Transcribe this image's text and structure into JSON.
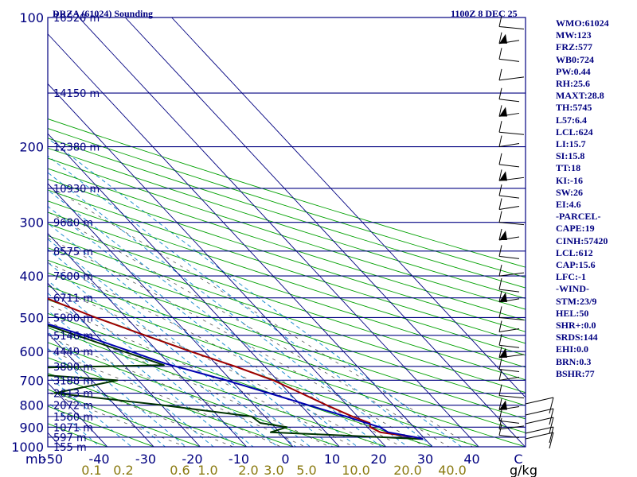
{
  "chart_data": {
    "type": "skew-t log-p sounding",
    "title": "DRZA (61024) Sounding",
    "time_label": "1100Z  8 DEC 25",
    "ylabel": "mb",
    "xlabel_mixing_ratio": "g/kg",
    "pressure_ticks": [
      100,
      200,
      300,
      400,
      500,
      600,
      700,
      800,
      900,
      1000
    ],
    "pressure_range": [
      100,
      1000
    ],
    "temperature_ticks": [
      "-50",
      "-40",
      "-30",
      "-20",
      "-10",
      "0",
      "10",
      "20",
      "30",
      "40",
      "C"
    ],
    "temperature_values": [
      -50,
      -40,
      -30,
      -20,
      -10,
      0,
      10,
      20,
      30,
      40
    ],
    "mixing_ratio_labels": [
      "0.1",
      "0.2",
      "0.6",
      "1.0",
      "2.0",
      "3.0",
      "5.0",
      "10.0",
      "20.0",
      "40.0"
    ],
    "height_levels": [
      {
        "p": 100,
        "label": "16520 m"
      },
      {
        "p": 150,
        "label": "14150 m"
      },
      {
        "p": 200,
        "label": "12380 m"
      },
      {
        "p": 250,
        "label": "10930 m"
      },
      {
        "p": 300,
        "label": "9680 m"
      },
      {
        "p": 350,
        "label": "8575 m"
      },
      {
        "p": 400,
        "label": "7600 m"
      },
      {
        "p": 450,
        "label": "6711 m"
      },
      {
        "p": 500,
        "label": "5900 m"
      },
      {
        "p": 550,
        "label": "5146 m"
      },
      {
        "p": 600,
        "label": "4449 m"
      },
      {
        "p": 650,
        "label": "3800 m"
      },
      {
        "p": 700,
        "label": "3188 m"
      },
      {
        "p": 750,
        "label": "2613 m"
      },
      {
        "p": 800,
        "label": "2072 m"
      },
      {
        "p": 850,
        "label": "1560 m"
      },
      {
        "p": 900,
        "label": "1071 m"
      },
      {
        "p": 950,
        "label": "597 m"
      },
      {
        "p": 1000,
        "label": "155 m"
      }
    ],
    "series": [
      {
        "name": "Temperature",
        "color": "#a00000",
        "points": [
          [
            100,
            -75.8
          ],
          [
            105,
            -79.5
          ],
          [
            120,
            -83.3
          ],
          [
            150,
            -81.1
          ],
          [
            200,
            -74.9
          ],
          [
            250,
            -65.8
          ],
          [
            300,
            -56.3
          ],
          [
            350,
            -43.2
          ],
          [
            400,
            -32.6
          ],
          [
            450,
            -23.4
          ],
          [
            500,
            -16.6
          ],
          [
            550,
            -9.5
          ],
          [
            600,
            -2.9
          ],
          [
            650,
            3.7
          ],
          [
            700,
            9.1
          ],
          [
            750,
            12.5
          ],
          [
            800,
            15.6
          ],
          [
            850,
            18.9
          ],
          [
            880,
            21.3
          ],
          [
            900,
            20.6
          ],
          [
            925,
            21.7
          ],
          [
            950,
            28.3
          ],
          [
            960,
            29.5
          ]
        ]
      },
      {
        "name": "Dew point",
        "color": "#003300",
        "points": [
          [
            105,
            -81.5
          ],
          [
            115,
            -91.5
          ],
          [
            130,
            -96.6
          ],
          [
            150,
            -93.9
          ],
          [
            200,
            -85.7
          ],
          [
            250,
            -79.1
          ],
          [
            300,
            -66.0
          ],
          [
            350,
            -63.9
          ],
          [
            400,
            -53.2
          ],
          [
            450,
            -33.4
          ],
          [
            500,
            -31.8
          ],
          [
            550,
            -24.3
          ],
          [
            600,
            -17.3
          ],
          [
            645,
            -11.4
          ],
          [
            660,
            -55.9
          ],
          [
            700,
            -24.5
          ],
          [
            750,
            -40.6
          ],
          [
            800,
            -19.6
          ],
          [
            850,
            -2.8
          ],
          [
            880,
            -2.3
          ],
          [
            900,
            2.6
          ],
          [
            925,
            -1.9
          ],
          [
            950,
            21.4
          ],
          [
            960,
            29.5
          ]
        ]
      },
      {
        "name": "Parcel",
        "color": "#0000b0",
        "points": [
          [
            110,
            -96.0
          ],
          [
            150,
            -102.4
          ],
          [
            200,
            -99.8
          ],
          [
            250,
            -93.2
          ],
          [
            300,
            -81.0
          ],
          [
            350,
            -66.9
          ],
          [
            400,
            -53.2
          ],
          [
            450,
            -41.2
          ],
          [
            500,
            -31.3
          ],
          [
            550,
            -22.7
          ],
          [
            600,
            -15.8
          ],
          [
            640,
            -10.8
          ],
          [
            700,
            -1.0
          ],
          [
            750,
            5.6
          ],
          [
            800,
            11.7
          ],
          [
            850,
            17.5
          ],
          [
            900,
            22.6
          ],
          [
            925,
            23.4
          ],
          [
            950,
            28.3
          ],
          [
            960,
            29.5
          ]
        ]
      }
    ],
    "wind_barbs": "plotted at right edge"
  },
  "indices": [
    "WMO:61024",
    "MW:123",
    "FRZ:577",
    "WB0:724",
    "PW:0.44",
    "RH:25.6",
    "MAXT:28.8",
    "TH:5745",
    "L57:6.4",
    "LCL:624",
    "LI:15.7",
    "SI:15.8",
    "TT:18",
    "KI:-16",
    "SW:26",
    "EI:4.6",
    "-PARCEL-",
    "CAPE:19",
    "CINH:57420",
    "LCL:612",
    "CAP:15.6",
    "LFC:-1",
    "-WIND-",
    "STM:23/9",
    "HEL:50",
    "SHR+:0.0",
    "SRDS:144",
    "EHI:0.0",
    "BRN:0.3",
    "BSHR:77"
  ],
  "colors": {
    "isobar": "#000080",
    "axis_text": "#000080",
    "dry_adiabat": "#00a000",
    "mixing_ratio": "#2090d0",
    "moist_adiabat": "#555555",
    "mixing_label": "#8a7a10"
  }
}
